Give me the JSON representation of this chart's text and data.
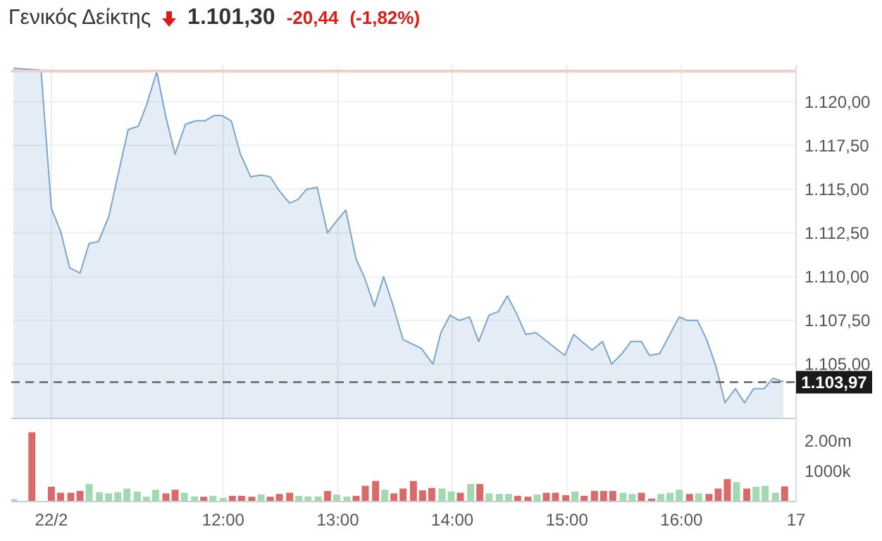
{
  "chart_data": [
    {
      "type": "area",
      "title": "Γενικός Δείκτης",
      "annotations": [
        "1.101,30",
        "-20,44",
        "(-1,82%)"
      ],
      "tick_labels": "y",
      "grid": true,
      "xlim": [
        10.15,
        17
      ],
      "xticks": [
        {
          "value": 10.5,
          "label": null
        },
        {
          "value": 12,
          "label": null
        },
        {
          "value": 13,
          "label": null
        },
        {
          "value": 14,
          "label": null
        },
        {
          "value": 15,
          "label": null
        },
        {
          "value": 16,
          "label": null
        },
        {
          "value": 17,
          "label": null
        }
      ],
      "ylim": [
        1101.9,
        1122.1
      ],
      "yticks": [
        {
          "value": 1105,
          "label": "1.105,00"
        },
        {
          "value": 1107.5,
          "label": "1.107,50"
        },
        {
          "value": 1110,
          "label": "1.110,00"
        },
        {
          "value": 1112.5,
          "label": "1.112,50"
        },
        {
          "value": 1115,
          "label": "1.115,00"
        },
        {
          "value": 1117.5,
          "label": "1.117,50"
        },
        {
          "value": 1120,
          "label": "1.120,00"
        }
      ],
      "ref_lines": [
        {
          "axis": "y",
          "value": 1121.74,
          "color": "#f4cccc",
          "line_style": "solid"
        },
        {
          "axis": "y",
          "value": 1103.97,
          "label": "1.103,97",
          "color": "#666666",
          "line_style": "dashed"
        }
      ],
      "series": [
        {
          "color": "#7aa6cc",
          "x": [
            10.17,
            10.41,
            10.5,
            10.58,
            10.66,
            10.75,
            10.83,
            10.91,
            11.0,
            11.17,
            11.26,
            11.33,
            11.42,
            11.5,
            11.58,
            11.67,
            11.76,
            11.84,
            11.92,
            11.99,
            12.07,
            12.15,
            12.24,
            12.33,
            12.41,
            12.49,
            12.58,
            12.65,
            12.73,
            12.82,
            12.91,
            12.98,
            13.07,
            13.16,
            13.23,
            13.32,
            13.4,
            13.48,
            13.57,
            13.73,
            13.83,
            13.9,
            13.98,
            14.06,
            14.15,
            14.23,
            14.32,
            14.4,
            14.48,
            14.56,
            14.64,
            14.73,
            14.98,
            15.06,
            15.13,
            15.22,
            15.31,
            15.39,
            15.48,
            15.56,
            15.65,
            15.72,
            15.81,
            15.89,
            15.98,
            16.05,
            16.14,
            16.22,
            16.3,
            16.38,
            16.47,
            16.55,
            16.63,
            16.72,
            16.8,
            16.89
          ],
          "values": [
            1121.9,
            1121.8,
            1113.9,
            1112.6,
            1110.5,
            1110.2,
            1111.9,
            1112.0,
            1113.4,
            1118.4,
            1118.6,
            1119.8,
            1121.7,
            1119.1,
            1117.0,
            1118.7,
            1118.9,
            1118.9,
            1119.2,
            1119.2,
            1118.9,
            1117.0,
            1115.7,
            1115.8,
            1115.7,
            1114.9,
            1114.2,
            1114.4,
            1115.0,
            1115.1,
            1112.5,
            1113.1,
            1113.8,
            1111.0,
            1110.0,
            1108.3,
            1110.0,
            1108.4,
            1106.4,
            1105.9,
            1105.0,
            1106.8,
            1107.8,
            1107.5,
            1107.7,
            1106.3,
            1107.8,
            1108.0,
            1108.9,
            1107.9,
            1106.7,
            1106.8,
            1105.5,
            1106.7,
            1106.3,
            1105.8,
            1106.3,
            1105.0,
            1105.6,
            1106.3,
            1106.3,
            1105.5,
            1105.6,
            1106.6,
            1107.7,
            1107.5,
            1107.5,
            1106.4,
            1104.9,
            1102.8,
            1103.6,
            1102.8,
            1103.6,
            1103.6,
            1104.2,
            1104.0
          ]
        }
      ]
    },
    {
      "type": "bar",
      "grid": "x",
      "xlim": [
        10.15,
        17
      ],
      "xticks": [
        {
          "value": 10.5,
          "label": "22/2"
        },
        {
          "value": 12,
          "label": "12:00"
        },
        {
          "value": 13,
          "label": "13:00"
        },
        {
          "value": 14,
          "label": "14:00"
        },
        {
          "value": 15,
          "label": "15:00"
        },
        {
          "value": 16,
          "label": "16:00"
        },
        {
          "value": 17,
          "label": "17"
        }
      ],
      "ylim": [
        0,
        2700000
      ],
      "yticks": [
        {
          "value": 1000000,
          "label": "1000k"
        },
        {
          "value": 2000000,
          "label": "2.00m"
        }
      ],
      "x": [
        10.17,
        10.33,
        10.5,
        10.58,
        10.67,
        10.75,
        10.83,
        10.92,
        11.0,
        11.08,
        11.16,
        11.25,
        11.33,
        11.41,
        11.5,
        11.58,
        11.66,
        11.75,
        11.83,
        11.91,
        12.0,
        12.08,
        12.16,
        12.25,
        12.33,
        12.41,
        12.49,
        12.58,
        12.66,
        12.74,
        12.83,
        12.91,
        12.99,
        13.08,
        13.16,
        13.24,
        13.33,
        13.41,
        13.49,
        13.57,
        13.66,
        13.74,
        13.82,
        13.91,
        13.99,
        14.07,
        14.16,
        14.24,
        14.32,
        14.41,
        14.49,
        14.57,
        14.66,
        14.74,
        14.82,
        14.9,
        14.99,
        15.07,
        15.15,
        15.24,
        15.32,
        15.4,
        15.49,
        15.57,
        15.65,
        15.74,
        15.82,
        15.9,
        15.98,
        16.07,
        16.15,
        16.24,
        16.32,
        16.4,
        16.48,
        16.57,
        16.65,
        16.73,
        16.82,
        16.9
      ],
      "values": [
        80000,
        2290000,
        490000,
        290000,
        290000,
        350000,
        580000,
        310000,
        270000,
        310000,
        430000,
        330000,
        160000,
        390000,
        270000,
        390000,
        290000,
        170000,
        160000,
        190000,
        120000,
        190000,
        190000,
        160000,
        230000,
        160000,
        250000,
        290000,
        190000,
        170000,
        170000,
        350000,
        230000,
        160000,
        190000,
        520000,
        680000,
        390000,
        270000,
        430000,
        680000,
        370000,
        450000,
        430000,
        330000,
        290000,
        580000,
        580000,
        270000,
        250000,
        250000,
        190000,
        160000,
        230000,
        290000,
        290000,
        210000,
        330000,
        190000,
        350000,
        350000,
        350000,
        290000,
        250000,
        290000,
        100000,
        250000,
        290000,
        390000,
        250000,
        270000,
        250000,
        430000,
        740000,
        640000,
        430000,
        490000,
        520000,
        290000,
        500000
      ],
      "colors": [
        "#a3d9b1",
        "#d96a6a",
        "#d96a6a",
        "#d96a6a",
        "#d96a6a",
        "#d96a6a",
        "#a3d9b1",
        "#a3d9b1",
        "#a3d9b1",
        "#a3d9b1",
        "#a3d9b1",
        "#a3d9b1",
        "#a3d9b1",
        "#a3d9b1",
        "#d96a6a",
        "#d96a6a",
        "#a3d9b1",
        "#a3d9b1",
        "#d96a6a",
        "#a3d9b1",
        "#a3d9b1",
        "#d96a6a",
        "#d96a6a",
        "#d96a6a",
        "#a3d9b1",
        "#d96a6a",
        "#d96a6a",
        "#d96a6a",
        "#a3d9b1",
        "#a3d9b1",
        "#a3d9b1",
        "#d96a6a",
        "#a3d9b1",
        "#a3d9b1",
        "#d96a6a",
        "#d96a6a",
        "#d96a6a",
        "#a3d9b1",
        "#d96a6a",
        "#d96a6a",
        "#d96a6a",
        "#d96a6a",
        "#d96a6a",
        "#a3d9b1",
        "#a3d9b1",
        "#d96a6a",
        "#a3d9b1",
        "#d96a6a",
        "#a3d9b1",
        "#a3d9b1",
        "#a3d9b1",
        "#d96a6a",
        "#d96a6a",
        "#a3d9b1",
        "#d96a6a",
        "#d96a6a",
        "#d96a6a",
        "#a3d9b1",
        "#d96a6a",
        "#d96a6a",
        "#d96a6a",
        "#d96a6a",
        "#a3d9b1",
        "#a3d9b1",
        "#d96a6a",
        "#d96a6a",
        "#a3d9b1",
        "#a3d9b1",
        "#a3d9b1",
        "#d96a6a",
        "#a3d9b1",
        "#d96a6a",
        "#d96a6a",
        "#d96a6a",
        "#a3d9b1",
        "#d96a6a",
        "#a3d9b1",
        "#a3d9b1",
        "#a3d9b1",
        "#d96a6a"
      ]
    }
  ]
}
